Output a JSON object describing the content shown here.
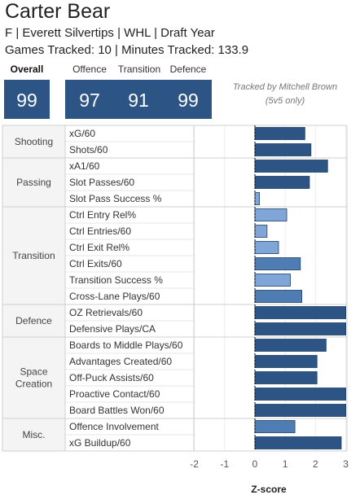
{
  "header": {
    "player_name": "Carter Bear",
    "subtitle": "F | Everett Silvertips | WHL | Draft Year",
    "games_line": "Games Tracked: 10 | Minutes Tracked: 133.9"
  },
  "scores": {
    "overall": {
      "label": "Overall",
      "value": "99"
    },
    "offence": {
      "label": "Offence",
      "value": "97"
    },
    "transition": {
      "label": "Transition",
      "value": "91"
    },
    "defence": {
      "label": "Defence",
      "value": "99"
    }
  },
  "note": {
    "line1": "Tracked by Mitchell Brown",
    "line2": "(5v5 only)"
  },
  "colors": {
    "score_box": "#2c5585",
    "bar_dark": "#2c5585",
    "bar_mid": "#4f7db3",
    "bar_light": "#7fa6d6"
  },
  "chart_data": {
    "type": "bar",
    "orientation": "horizontal",
    "xlabel": "Z-score",
    "xlim": [
      -2.8,
      3.0
    ],
    "xticks": [
      -2,
      -1,
      0,
      1,
      2,
      3
    ],
    "groups": [
      {
        "name": "Shooting",
        "metrics": [
          {
            "label": "xG/60",
            "value": 1.65
          },
          {
            "label": "Shots/60",
            "value": 1.85
          }
        ]
      },
      {
        "name": "Passing",
        "metrics": [
          {
            "label": "xA1/60",
            "value": 2.4
          },
          {
            "label": "Slot Passes/60",
            "value": 1.8
          },
          {
            "label": "Slot Pass Success %",
            "value": 0.15
          }
        ]
      },
      {
        "name": "Transition",
        "metrics": [
          {
            "label": "Ctrl Entry Rel%",
            "value": 1.05
          },
          {
            "label": "Ctrl Entries/60",
            "value": 0.4
          },
          {
            "label": "Ctrl Exit Rel%",
            "value": 0.78
          },
          {
            "label": "Ctrl Exits/60",
            "value": 1.5
          },
          {
            "label": "Transition Success %",
            "value": 1.17
          },
          {
            "label": "Cross-Lane Plays/60",
            "value": 1.55
          }
        ]
      },
      {
        "name": "Defence",
        "metrics": [
          {
            "label": "OZ Retrievals/60",
            "value": 3.0
          },
          {
            "label": "Defensive Plays/CA",
            "value": 3.0
          }
        ]
      },
      {
        "name": "Space Creation",
        "metrics": [
          {
            "label": "Boards to Middle Plays/60",
            "value": 2.35
          },
          {
            "label": "Advantages Created/60",
            "value": 2.05
          },
          {
            "label": "Off-Puck Assists/60",
            "value": 2.05
          },
          {
            "label": "Proactive Contact/60",
            "value": 3.0
          },
          {
            "label": "Board Battles Won/60",
            "value": 3.0
          }
        ]
      },
      {
        "name": "Misc.",
        "metrics": [
          {
            "label": "Offence Involvement",
            "value": 1.32
          },
          {
            "label": "xG Buildup/60",
            "value": 2.85
          }
        ]
      }
    ]
  }
}
